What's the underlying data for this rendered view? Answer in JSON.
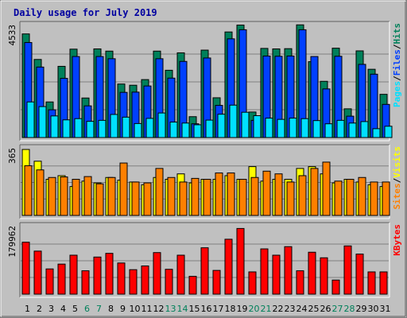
{
  "chart_data": {
    "type": "bar",
    "title": "Daily usage for July 2019",
    "categories": [
      "1",
      "2",
      "3",
      "4",
      "5",
      "6",
      "7",
      "8",
      "9",
      "10",
      "11",
      "12",
      "13",
      "14",
      "15",
      "16",
      "17",
      "18",
      "19",
      "20",
      "21",
      "22",
      "23",
      "24",
      "25",
      "26",
      "27",
      "28",
      "29",
      "30",
      "31"
    ],
    "weekend_days": [
      "6",
      "7",
      "13",
      "14",
      "20",
      "21",
      "27",
      "28"
    ],
    "panels": [
      {
        "max_label": "4533",
        "ymax": 4533,
        "legend": [
          "Pages",
          "/",
          "Files",
          "/",
          "Hits"
        ],
        "legend_colors": [
          "#00e0ff",
          "#000000",
          "#0040ff",
          "#000000",
          "#00805a"
        ],
        "series": [
          {
            "name": "Hits",
            "color": "#00805a",
            "values": [
              4220,
              3180,
              1450,
              2900,
              3600,
              1610,
              3610,
              3520,
              2180,
              2130,
              2360,
              3520,
              2740,
              3450,
              850,
              3560,
              1620,
              4300,
              4580,
              1040,
              3630,
              3610,
              3620,
              4590,
              3090,
              2290,
              3640,
              1170,
              3530,
              2780,
              1760
            ]
          },
          {
            "name": "Files",
            "color": "#0040ff",
            "values": [
              3870,
              2870,
              1130,
              2410,
              3300,
              1290,
              3300,
              3210,
              1840,
              1850,
              2100,
              3210,
              2420,
              3100,
              560,
              3240,
              1310,
              4020,
              4390,
              700,
              3320,
              3310,
              3320,
              4390,
              3300,
              1980,
              3310,
              870,
              2980,
              2580,
              1350
            ]
          },
          {
            "name": "Pages",
            "color": "#00e0ff",
            "values": [
              1450,
              1260,
              880,
              720,
              770,
              660,
              700,
              940,
              830,
              570,
              780,
              1000,
              630,
              590,
              520,
              710,
              950,
              1320,
              1030,
              890,
              790,
              740,
              790,
              770,
              690,
              560,
              700,
              590,
              650,
              360,
              460
            ]
          }
        ]
      },
      {
        "max_label": "365",
        "ymax": 365,
        "legend": [
          "Sites",
          "/",
          "Visits"
        ],
        "legend_colors": [
          "#ff8000",
          "#000000",
          "#ffff00"
        ],
        "series": [
          {
            "name": "Visits",
            "color": "#ffff00",
            "values": [
              365,
              300,
              200,
              220,
              160,
              190,
              180,
              210,
              195,
              185,
              170,
              210,
              200,
              230,
              180,
              200,
              200,
              220,
              200,
              270,
              190,
              200,
              200,
              260,
              270,
              230,
              180,
              200,
              185,
              170,
              160
            ]
          },
          {
            "name": "Sites",
            "color": "#ff8000",
            "values": [
              275,
              252,
              210,
              213,
              200,
              215,
              175,
              210,
              290,
              185,
              180,
              260,
              210,
              185,
              205,
              200,
              235,
              235,
              200,
              210,
              245,
              230,
              185,
              220,
              260,
              295,
              190,
              200,
              210,
              185,
              185
            ]
          }
        ]
      },
      {
        "max_label": "179962",
        "ymax": 179962,
        "legend": [
          "KBytes"
        ],
        "legend_colors": [
          "#ff0000"
        ],
        "series": [
          {
            "name": "KBytes",
            "color": "#ff0000",
            "values": [
              140000,
              116000,
              68000,
              81000,
              105000,
              63000,
              100000,
              110000,
              84000,
              66000,
              76000,
              112000,
              67000,
              105000,
              48000,
              125000,
              64000,
              148000,
              177000,
              60000,
              122000,
              105000,
              128000,
              63000,
              113000,
              98000,
              38000,
              130000,
              108000,
              60000,
              60000
            ]
          }
        ]
      }
    ]
  }
}
